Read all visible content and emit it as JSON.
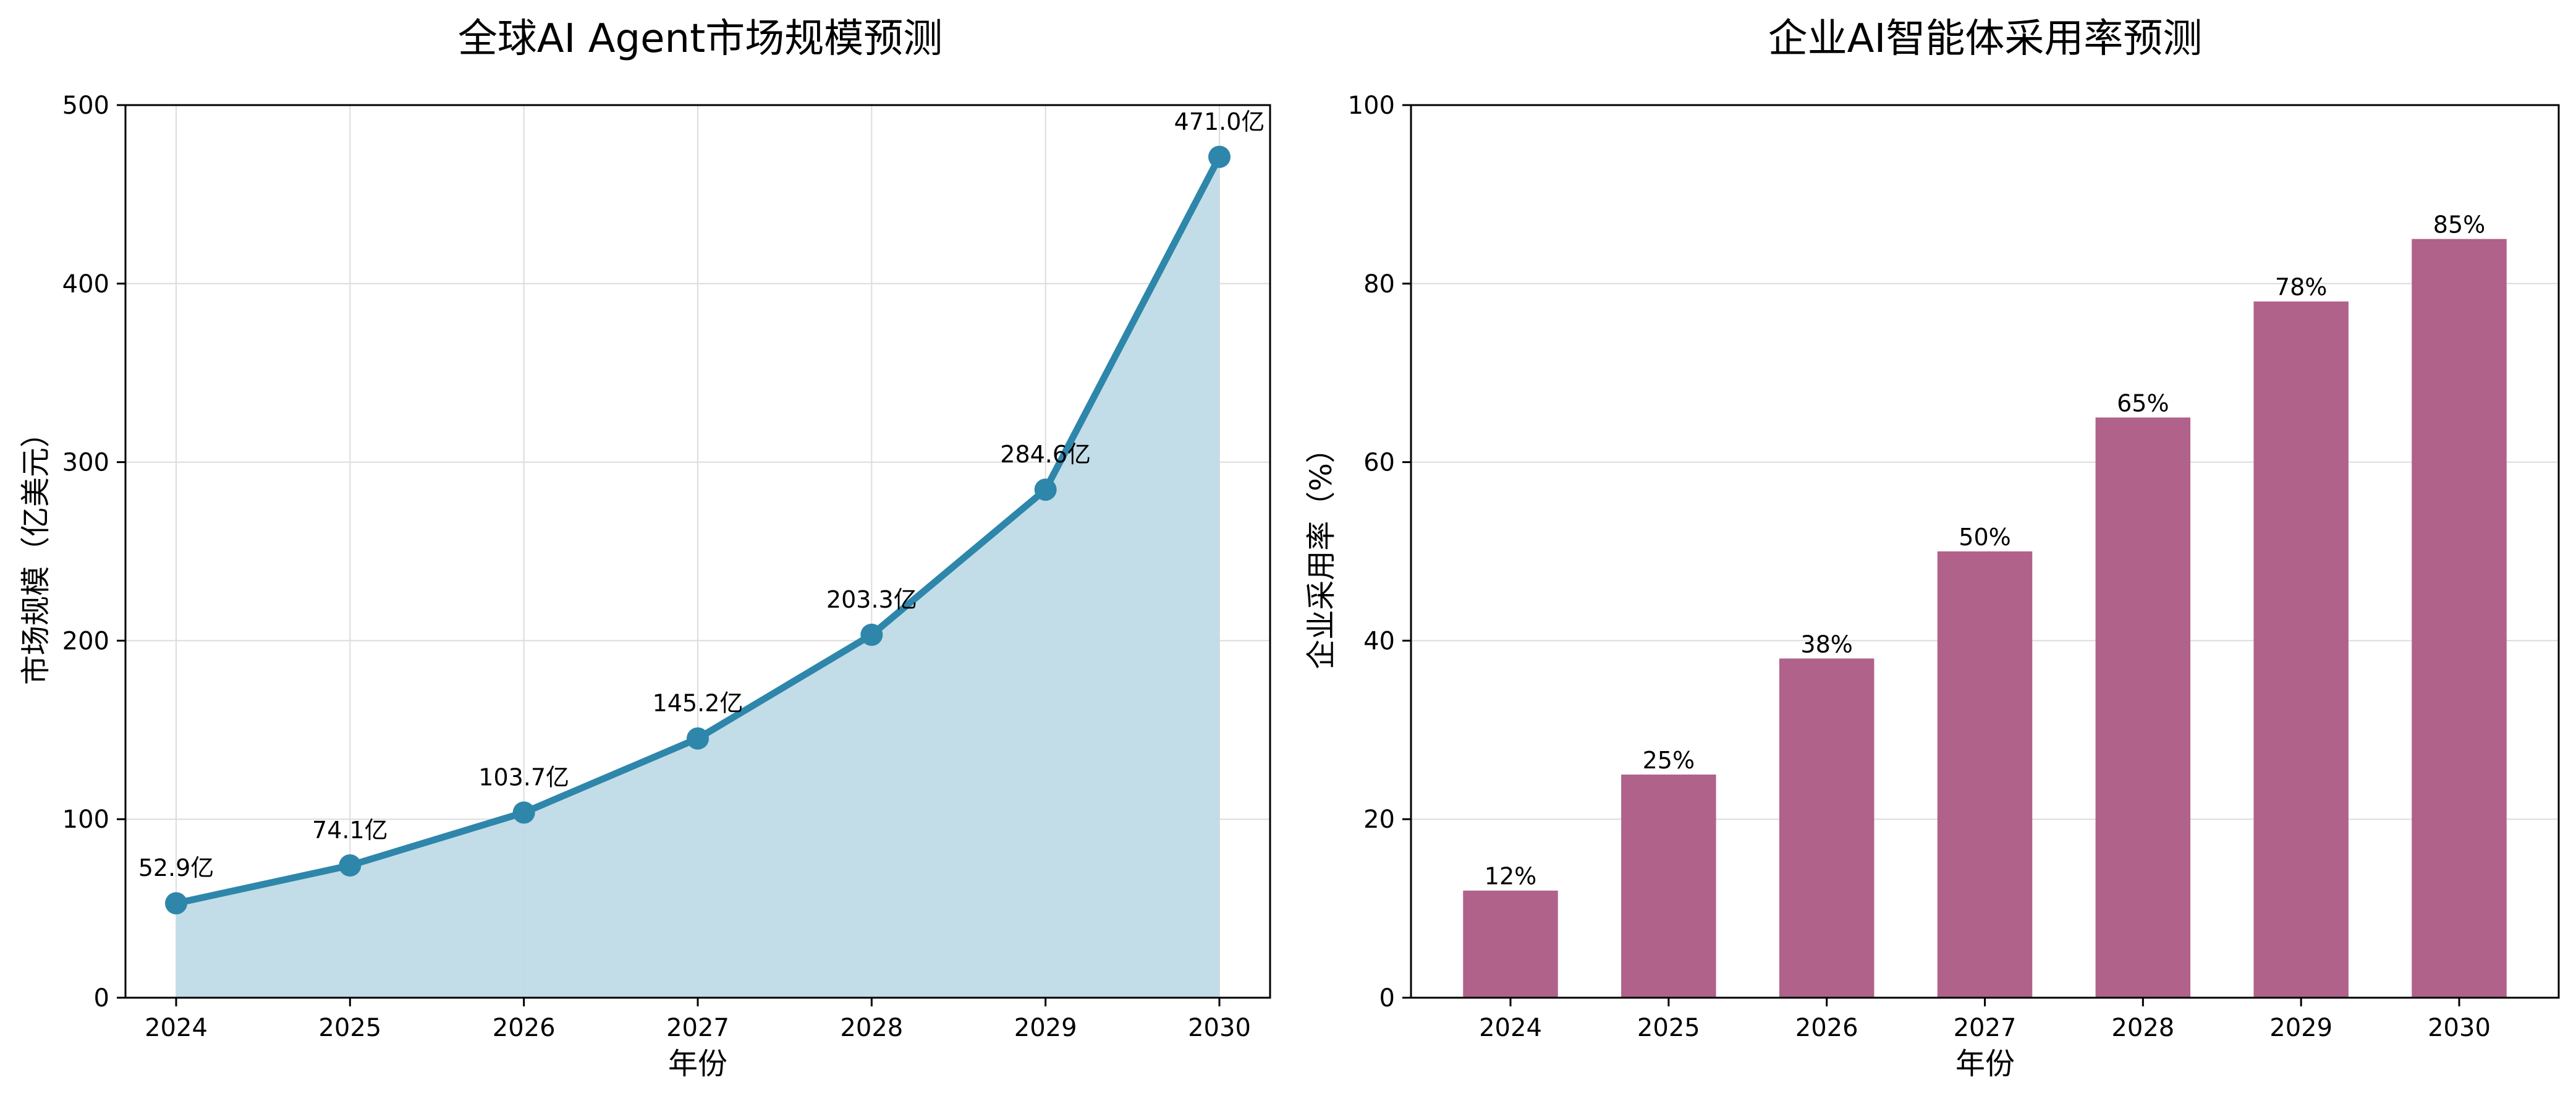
{
  "chart_data": [
    {
      "type": "area",
      "title": "全球AI Agent市场规模预测",
      "xlabel": "年份",
      "ylabel": "市场规模（亿美元）",
      "categories": [
        "2024",
        "2025",
        "2026",
        "2027",
        "2028",
        "2029",
        "2030"
      ],
      "values": [
        52.9,
        74.1,
        103.7,
        145.2,
        203.3,
        284.6,
        471.0
      ],
      "data_labels": [
        "52.9亿",
        "74.1亿",
        "103.7亿",
        "145.2亿",
        "203.3亿",
        "284.6亿",
        "471.0亿"
      ],
      "ylim": [
        0,
        500
      ],
      "yticks": [
        "0",
        "100",
        "200",
        "300",
        "400",
        "500"
      ],
      "grid": true,
      "line_color": "#2e86ab",
      "fill_color": "#bfdbe6",
      "markers": true
    },
    {
      "type": "bar",
      "title": "企业AI智能体采用率预测",
      "xlabel": "年份",
      "ylabel": "企业采用率（%）",
      "categories": [
        "2024",
        "2025",
        "2026",
        "2027",
        "2028",
        "2029",
        "2030"
      ],
      "values": [
        12,
        25,
        38,
        50,
        65,
        78,
        85
      ],
      "data_labels": [
        "12%",
        "25%",
        "38%",
        "50%",
        "65%",
        "78%",
        "85%"
      ],
      "ylim": [
        0,
        100
      ],
      "yticks": [
        "0",
        "20",
        "40",
        "60",
        "80",
        "100"
      ],
      "grid": true,
      "bar_color": "#b0628a"
    }
  ]
}
